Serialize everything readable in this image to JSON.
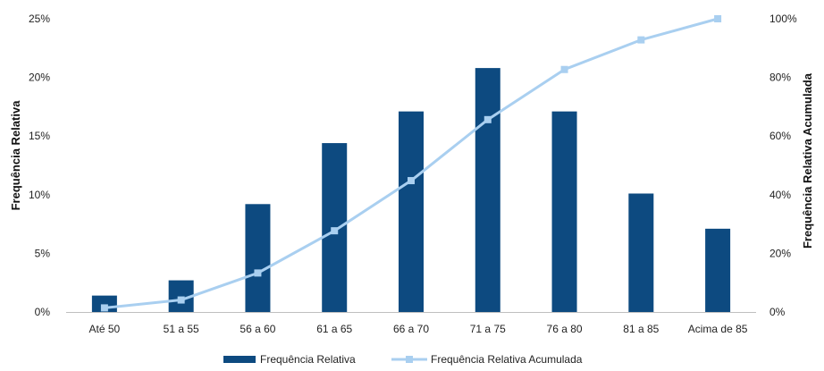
{
  "chart_data": {
    "type": "bar",
    "categories": [
      "Até 50",
      "51 a 55",
      "56 a 60",
      "61 a 65",
      "66 a 70",
      "71 a 75",
      "76 a 80",
      "81 a 85",
      "Acima de 85"
    ],
    "series": [
      {
        "name": "Frequência Relativa",
        "type": "bar",
        "axis": "left",
        "values": [
          1.4,
          2.7,
          9.2,
          14.4,
          17.1,
          20.8,
          17.1,
          10.1,
          7.1
        ]
      },
      {
        "name": "Frequência Relativa Acumulada",
        "type": "line",
        "axis": "right",
        "values": [
          1.4,
          4.1,
          13.3,
          27.7,
          44.8,
          65.6,
          82.7,
          92.8,
          100
        ]
      }
    ],
    "ylabel": "Frequência Relativa",
    "y2label": "Frequência Relativa Acumulada",
    "ylim": [
      0,
      25
    ],
    "y2lim": [
      0,
      100
    ],
    "yticks": [
      "0%",
      "5%",
      "10%",
      "15%",
      "20%",
      "25%"
    ],
    "y2ticks": [
      "0%",
      "20%",
      "40%",
      "60%",
      "80%",
      "100%"
    ],
    "grid": false,
    "legend": "bottom-center",
    "colors": {
      "bar": "#0d4a80",
      "line": "#a9cff0"
    }
  }
}
